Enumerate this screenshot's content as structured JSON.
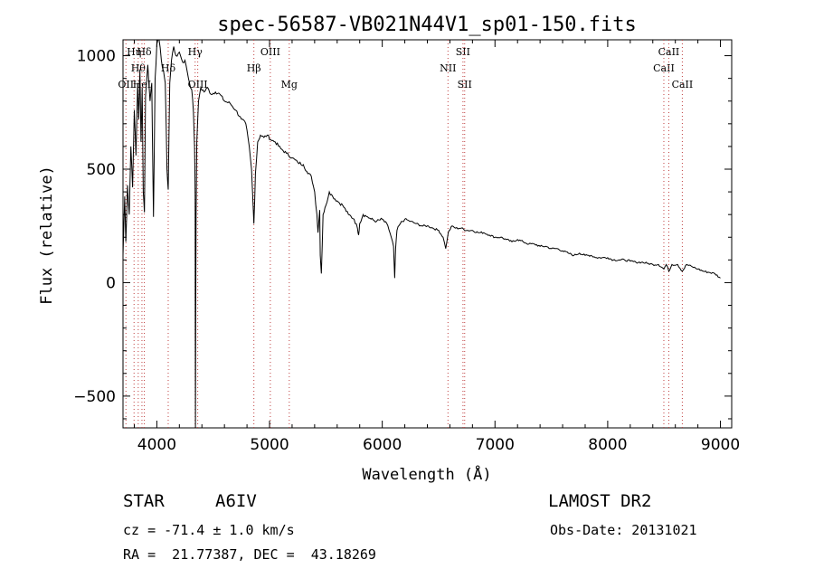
{
  "chart_data": {
    "type": "line",
    "title": "spec-56587-VB021N44V1_sp01-150.fits",
    "xlabel": "Wavelength (Å)",
    "ylabel": "Flux (relative)",
    "xlim": [
      3700,
      9100
    ],
    "ylim": [
      -640,
      1070
    ],
    "xticks": [
      4000,
      5000,
      6000,
      7000,
      8000,
      9000
    ],
    "yticks": [
      -500,
      0,
      500,
      1000
    ],
    "grid": false,
    "line_color": "#000000",
    "marker_color": "#c04040",
    "series": [
      {
        "values": [
          [
            3700,
            120
          ],
          [
            3715,
            380
          ],
          [
            3725,
            180
          ],
          [
            3740,
            430
          ],
          [
            3755,
            300
          ],
          [
            3770,
            600
          ],
          [
            3785,
            420
          ],
          [
            3800,
            760
          ],
          [
            3815,
            560
          ],
          [
            3830,
            880
          ],
          [
            3840,
            720
          ],
          [
            3850,
            940
          ],
          [
            3860,
            620
          ],
          [
            3870,
            860
          ],
          [
            3880,
            400
          ],
          [
            3890,
            310
          ],
          [
            3900,
            820
          ],
          [
            3920,
            960
          ],
          [
            3940,
            800
          ],
          [
            3955,
            880
          ],
          [
            3970,
            290
          ],
          [
            3985,
            900
          ],
          [
            4000,
            1050
          ],
          [
            4020,
            1070
          ],
          [
            4040,
            980
          ],
          [
            4060,
            930
          ],
          [
            4075,
            880
          ],
          [
            4090,
            500
          ],
          [
            4101,
            410
          ],
          [
            4115,
            880
          ],
          [
            4130,
            980
          ],
          [
            4150,
            1040
          ],
          [
            4170,
            1000
          ],
          [
            4190,
            1010
          ],
          [
            4210,
            1000
          ],
          [
            4230,
            970
          ],
          [
            4250,
            980
          ],
          [
            4270,
            930
          ],
          [
            4290,
            880
          ],
          [
            4310,
            850
          ],
          [
            4325,
            750
          ],
          [
            4335,
            600
          ],
          [
            4340,
            380
          ],
          [
            4343,
            -640
          ],
          [
            4348,
            300
          ],
          [
            4355,
            620
          ],
          [
            4370,
            800
          ],
          [
            4390,
            860
          ],
          [
            4420,
            840
          ],
          [
            4450,
            860
          ],
          [
            4480,
            830
          ],
          [
            4520,
            840
          ],
          [
            4560,
            830
          ],
          [
            4600,
            800
          ],
          [
            4650,
            790
          ],
          [
            4700,
            760
          ],
          [
            4750,
            720
          ],
          [
            4790,
            700
          ],
          [
            4820,
            600
          ],
          [
            4840,
            500
          ],
          [
            4861,
            260
          ],
          [
            4875,
            480
          ],
          [
            4895,
            620
          ],
          [
            4920,
            650
          ],
          [
            4950,
            640
          ],
          [
            4980,
            650
          ],
          [
            5010,
            630
          ],
          [
            5050,
            620
          ],
          [
            5100,
            590
          ],
          [
            5150,
            570
          ],
          [
            5200,
            550
          ],
          [
            5250,
            530
          ],
          [
            5300,
            520
          ],
          [
            5340,
            480
          ],
          [
            5370,
            470
          ],
          [
            5400,
            400
          ],
          [
            5420,
            300
          ],
          [
            5430,
            220
          ],
          [
            5445,
            320
          ],
          [
            5450,
            120
          ],
          [
            5460,
            40
          ],
          [
            5475,
            300
          ],
          [
            5500,
            340
          ],
          [
            5530,
            400
          ],
          [
            5560,
            380
          ],
          [
            5600,
            360
          ],
          [
            5650,
            340
          ],
          [
            5700,
            300
          ],
          [
            5750,
            280
          ],
          [
            5780,
            240
          ],
          [
            5790,
            210
          ],
          [
            5800,
            260
          ],
          [
            5830,
            300
          ],
          [
            5870,
            290
          ],
          [
            5900,
            280
          ],
          [
            5950,
            270
          ],
          [
            6000,
            280
          ],
          [
            6050,
            250
          ],
          [
            6080,
            200
          ],
          [
            6100,
            160
          ],
          [
            6110,
            20
          ],
          [
            6118,
            150
          ],
          [
            6130,
            230
          ],
          [
            6160,
            260
          ],
          [
            6200,
            280
          ],
          [
            6250,
            270
          ],
          [
            6300,
            260
          ],
          [
            6350,
            250
          ],
          [
            6400,
            250
          ],
          [
            6450,
            240
          ],
          [
            6500,
            230
          ],
          [
            6540,
            200
          ],
          [
            6563,
            150
          ],
          [
            6585,
            220
          ],
          [
            6620,
            250
          ],
          [
            6650,
            240
          ],
          [
            6700,
            240
          ],
          [
            6750,
            230
          ],
          [
            6800,
            230
          ],
          [
            6850,
            220
          ],
          [
            6900,
            220
          ],
          [
            6950,
            210
          ],
          [
            7000,
            200
          ],
          [
            7050,
            200
          ],
          [
            7100,
            190
          ],
          [
            7150,
            180
          ],
          [
            7200,
            190
          ],
          [
            7250,
            180
          ],
          [
            7300,
            170
          ],
          [
            7350,
            170
          ],
          [
            7400,
            160
          ],
          [
            7450,
            160
          ],
          [
            7500,
            150
          ],
          [
            7550,
            150
          ],
          [
            7600,
            140
          ],
          [
            7650,
            130
          ],
          [
            7700,
            120
          ],
          [
            7750,
            130
          ],
          [
            7800,
            120
          ],
          [
            7850,
            120
          ],
          [
            7900,
            110
          ],
          [
            7950,
            110
          ],
          [
            8000,
            110
          ],
          [
            8050,
            100
          ],
          [
            8100,
            100
          ],
          [
            8150,
            100
          ],
          [
            8200,
            95
          ],
          [
            8250,
            90
          ],
          [
            8300,
            90
          ],
          [
            8350,
            85
          ],
          [
            8400,
            80
          ],
          [
            8450,
            80
          ],
          [
            8498,
            60
          ],
          [
            8520,
            80
          ],
          [
            8542,
            50
          ],
          [
            8570,
            80
          ],
          [
            8620,
            80
          ],
          [
            8662,
            50
          ],
          [
            8700,
            80
          ],
          [
            8750,
            70
          ],
          [
            8800,
            60
          ],
          [
            8850,
            50
          ],
          [
            8900,
            45
          ],
          [
            8950,
            40
          ],
          [
            9000,
            20
          ]
        ]
      }
    ],
    "markers": [
      {
        "x": 3726,
        "label": "OII",
        "row": 3
      },
      {
        "x": 3798,
        "label": "Hη",
        "row": 1
      },
      {
        "x": 3835,
        "label": "Hθ",
        "row": 2
      },
      {
        "x": 3868,
        "label": "HeI",
        "row": 3
      },
      {
        "x": 3889,
        "label": "Hδ",
        "row": 1
      },
      {
        "x": 4101,
        "label": "Hδ",
        "row": 2
      },
      {
        "x": 4340,
        "label": "Hγ",
        "row": 1
      },
      {
        "x": 4363,
        "label": "OIII",
        "row": 3
      },
      {
        "x": 4861,
        "label": "Hβ",
        "row": 2
      },
      {
        "x": 5007,
        "label": "OIII",
        "row": 1
      },
      {
        "x": 5175,
        "label": "Mg",
        "row": 3
      },
      {
        "x": 6583,
        "label": "NII",
        "row": 2
      },
      {
        "x": 6716,
        "label": "SII",
        "row": 1
      },
      {
        "x": 6731,
        "label": "SII",
        "row": 3
      },
      {
        "x": 8498,
        "label": "CaII",
        "row": 2
      },
      {
        "x": 8542,
        "label": "CaII",
        "row": 1
      },
      {
        "x": 8662,
        "label": "CaII",
        "row": 3
      }
    ]
  },
  "info": {
    "object_type": "STAR",
    "subclass": "A6IV",
    "survey": "LAMOST DR2",
    "redshift": "cz = -71.4 ± 1.0 km/s",
    "obs_date": "Obs-Date: 20131021",
    "coords": "RA =  21.77387, DEC =  43.18269"
  }
}
